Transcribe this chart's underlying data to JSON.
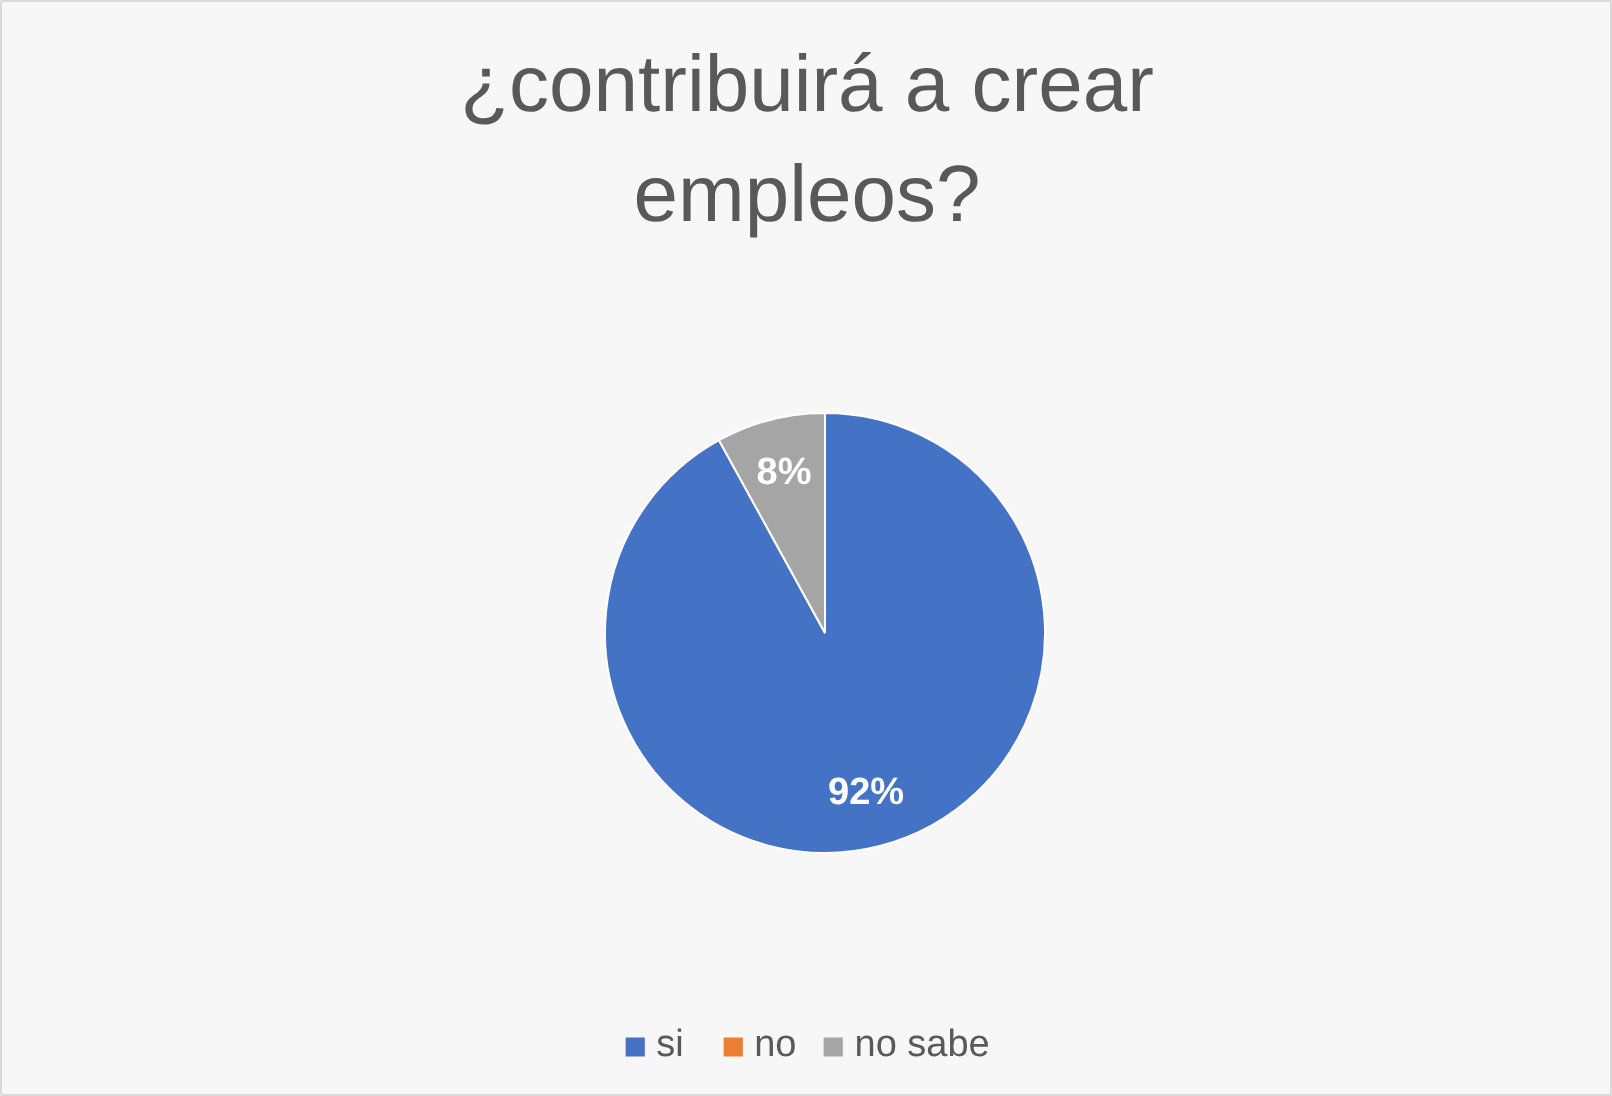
{
  "chart_data": {
    "type": "pie",
    "title": "¿contribuirá a crear empleos?",
    "categories": [
      "si",
      "no",
      "no sabe"
    ],
    "values": [
      92,
      0,
      8
    ],
    "colors": [
      "#4472c4",
      "#ed7d31",
      "#a5a5a5"
    ],
    "value_labels": [
      "92%",
      null,
      "8%"
    ],
    "legend": "bottom"
  }
}
